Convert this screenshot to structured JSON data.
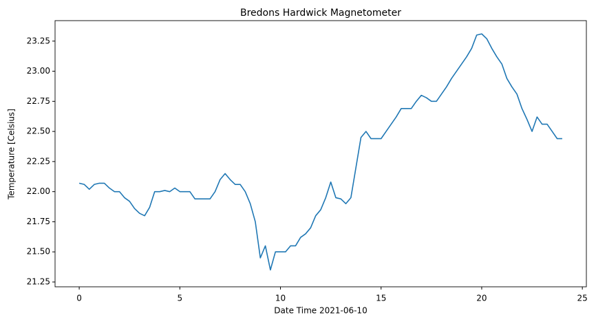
{
  "chart_data": {
    "type": "line",
    "title": "Bredons Hardwick Magnetometer",
    "x_label": "Date Time 2021-06-10",
    "y_label": "Temperature [Celsius]",
    "color": "#1f77b4",
    "x": [
      0,
      0.25,
      0.5,
      0.75,
      1,
      1.25,
      1.5,
      1.75,
      2,
      2.25,
      2.5,
      2.75,
      3,
      3.25,
      3.5,
      3.75,
      4,
      4.25,
      4.5,
      4.75,
      5,
      5.25,
      5.5,
      5.75,
      6,
      6.25,
      6.5,
      6.75,
      7,
      7.25,
      7.5,
      7.75,
      8,
      8.25,
      8.5,
      8.75,
      9,
      9.25,
      9.5,
      9.75,
      10,
      10.25,
      10.5,
      10.75,
      11,
      11.25,
      11.5,
      11.75,
      12,
      12.25,
      12.5,
      12.75,
      13,
      13.25,
      13.5,
      13.75,
      14,
      14.25,
      14.5,
      14.75,
      15,
      15.25,
      15.5,
      15.75,
      16,
      16.25,
      16.5,
      16.75,
      17,
      17.25,
      17.5,
      17.75,
      18,
      18.25,
      18.5,
      18.75,
      19,
      19.25,
      19.5,
      19.75,
      20,
      20.25,
      20.5,
      20.75,
      21,
      21.25,
      21.5,
      21.75,
      22,
      22.25,
      22.5,
      22.75,
      23,
      23.25,
      23.5,
      23.75,
      24
    ],
    "values": [
      22.07,
      22.06,
      22.02,
      22.06,
      22.07,
      22.07,
      22.03,
      22.0,
      22.0,
      21.95,
      21.92,
      21.86,
      21.82,
      21.8,
      21.87,
      22.0,
      22.0,
      22.01,
      22.0,
      22.03,
      22.0,
      22.0,
      22.0,
      21.94,
      21.94,
      21.94,
      21.94,
      22.0,
      22.1,
      22.15,
      22.1,
      22.06,
      22.06,
      22.0,
      21.9,
      21.75,
      21.45,
      21.55,
      21.35,
      21.5,
      21.5,
      21.5,
      21.55,
      21.55,
      21.62,
      21.65,
      21.7,
      21.8,
      21.85,
      21.95,
      22.08,
      21.95,
      21.94,
      21.9,
      21.95,
      22.2,
      22.45,
      22.5,
      22.44,
      22.44,
      22.44,
      22.5,
      22.56,
      22.62,
      22.69,
      22.69,
      22.69,
      22.75,
      22.8,
      22.78,
      22.75,
      22.75,
      22.81,
      22.87,
      22.94,
      23.0,
      23.06,
      23.12,
      23.19,
      23.3,
      23.31,
      23.27,
      23.19,
      23.12,
      23.06,
      22.94,
      22.87,
      22.81,
      22.69,
      22.6,
      22.5,
      22.62,
      22.56,
      22.56,
      22.5,
      22.44,
      22.44
    ],
    "xlim": [
      -1.2,
      25.2
    ],
    "ylim": [
      21.21,
      23.42
    ],
    "xticks": [
      0,
      5,
      10,
      15,
      20,
      25
    ],
    "yticks": [
      21.25,
      {
        "value": 21.5,
        "label": "21.50"
      },
      21.75,
      {
        "value": 22.0,
        "label": "22.00"
      },
      22.25,
      {
        "value": 22.5,
        "label": "22.50"
      },
      22.75,
      {
        "value": 23.0,
        "label": "23.00"
      },
      23.25
    ]
  }
}
